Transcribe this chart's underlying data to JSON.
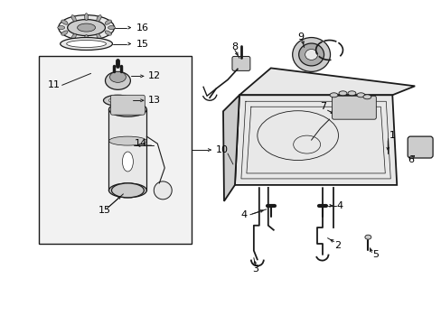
{
  "background_color": "#ffffff",
  "figsize": [
    4.89,
    3.6
  ],
  "dpi": 100,
  "line_color": "#1a1a1a",
  "text_color": "#000000",
  "gray_fill": "#e8e8e8",
  "gray_mid": "#cccccc",
  "gray_dark": "#aaaaaa"
}
